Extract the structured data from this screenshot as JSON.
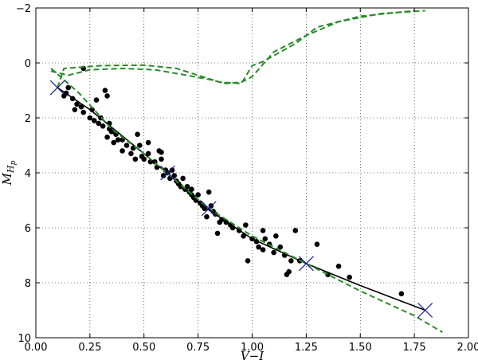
{
  "chart_data": {
    "type": "scatter",
    "title": "",
    "xlabel": "V−I",
    "ylabel": "M_Hp",
    "ylabel_main": "M",
    "ylabel_sub": "H",
    "ylabel_subsub": "p",
    "xlim": [
      0.0,
      2.0
    ],
    "ylim": [
      10,
      -2
    ],
    "y_inverted": true,
    "grid": true,
    "x_ticks": [
      0.0,
      0.25,
      0.5,
      0.75,
      1.0,
      1.25,
      1.5,
      1.75,
      2.0
    ],
    "x_tick_labels": [
      "0.00",
      "0.25",
      "0.50",
      "0.75",
      "1.00",
      "1.25",
      "1.50",
      "1.75",
      "2.00"
    ],
    "y_ticks": [
      -2,
      0,
      2,
      4,
      6,
      8,
      10
    ],
    "y_tick_labels": [
      "−2",
      "0",
      "2",
      "4",
      "6",
      "8",
      "10"
    ],
    "series": [
      {
        "kind": "scatter",
        "color": "#000000",
        "points": [
          [
            0.22,
            0.2
          ],
          [
            0.15,
            0.9
          ],
          [
            0.14,
            1.1
          ],
          [
            0.13,
            1.2
          ],
          [
            0.17,
            1.3
          ],
          [
            0.19,
            1.5
          ],
          [
            0.18,
            1.7
          ],
          [
            0.21,
            1.6
          ],
          [
            0.22,
            1.8
          ],
          [
            0.26,
            1.7
          ],
          [
            0.25,
            2.0
          ],
          [
            0.27,
            2.1
          ],
          [
            0.29,
            2.2
          ],
          [
            0.31,
            2.3
          ],
          [
            0.28,
            1.35
          ],
          [
            0.32,
            1.0
          ],
          [
            0.33,
            1.2
          ],
          [
            0.3,
            2.0
          ],
          [
            0.34,
            2.2
          ],
          [
            0.34,
            2.4
          ],
          [
            0.35,
            2.5
          ],
          [
            0.33,
            2.7
          ],
          [
            0.37,
            2.6
          ],
          [
            0.38,
            2.8
          ],
          [
            0.36,
            2.9
          ],
          [
            0.4,
            2.8
          ],
          [
            0.42,
            3.0
          ],
          [
            0.4,
            3.2
          ],
          [
            0.45,
            3.1
          ],
          [
            0.47,
            2.6
          ],
          [
            0.48,
            3.0
          ],
          [
            0.44,
            3.3
          ],
          [
            0.46,
            3.5
          ],
          [
            0.49,
            3.4
          ],
          [
            0.5,
            3.5
          ],
          [
            0.52,
            2.9
          ],
          [
            0.52,
            3.3
          ],
          [
            0.53,
            3.6
          ],
          [
            0.55,
            3.6
          ],
          [
            0.56,
            3.8
          ],
          [
            0.57,
            3.2
          ],
          [
            0.58,
            3.25
          ],
          [
            0.58,
            3.5
          ],
          [
            0.6,
            3.9
          ],
          [
            0.61,
            4.0
          ],
          [
            0.59,
            4.1
          ],
          [
            0.62,
            4.2
          ],
          [
            0.63,
            3.9
          ],
          [
            0.64,
            4.1
          ],
          [
            0.65,
            4.3
          ],
          [
            0.66,
            4.4
          ],
          [
            0.67,
            4.5
          ],
          [
            0.68,
            4.2
          ],
          [
            0.69,
            4.6
          ],
          [
            0.7,
            4.5
          ],
          [
            0.71,
            4.7
          ],
          [
            0.72,
            4.8
          ],
          [
            0.73,
            4.9
          ],
          [
            0.72,
            4.6
          ],
          [
            0.74,
            5.0
          ],
          [
            0.75,
            4.8
          ],
          [
            0.76,
            5.1
          ],
          [
            0.77,
            5.2
          ],
          [
            0.78,
            5.3
          ],
          [
            0.79,
            5.6
          ],
          [
            0.8,
            4.7
          ],
          [
            0.81,
            5.2
          ],
          [
            0.82,
            5.4
          ],
          [
            0.83,
            5.5
          ],
          [
            0.84,
            6.2
          ],
          [
            0.85,
            5.8
          ],
          [
            0.86,
            5.7
          ],
          [
            0.88,
            5.8
          ],
          [
            0.9,
            5.9
          ],
          [
            0.91,
            6.0
          ],
          [
            0.94,
            6.1
          ],
          [
            0.96,
            6.3
          ],
          [
            0.97,
            5.9
          ],
          [
            0.98,
            7.2
          ],
          [
            1.0,
            6.4
          ],
          [
            1.02,
            6.5
          ],
          [
            1.03,
            6.7
          ],
          [
            1.05,
            6.8
          ],
          [
            1.05,
            6.1
          ],
          [
            1.06,
            6.4
          ],
          [
            1.08,
            6.6
          ],
          [
            1.1,
            6.9
          ],
          [
            1.11,
            6.3
          ],
          [
            1.13,
            6.7
          ],
          [
            1.15,
            7.0
          ],
          [
            1.16,
            7.7
          ],
          [
            1.17,
            7.6
          ],
          [
            1.18,
            7.2
          ],
          [
            1.2,
            6.1
          ],
          [
            1.22,
            7.2
          ],
          [
            1.3,
            6.6
          ],
          [
            1.35,
            7.7
          ],
          [
            1.4,
            7.4
          ],
          [
            1.45,
            7.8
          ],
          [
            1.69,
            8.4
          ]
        ]
      },
      {
        "kind": "line",
        "color": "#000000",
        "points": [
          [
            0.1,
            0.9
          ],
          [
            0.25,
            1.7
          ],
          [
            0.5,
            3.3
          ],
          [
            0.62,
            4.1
          ],
          [
            0.79,
            5.3
          ],
          [
            1.0,
            6.4
          ],
          [
            1.25,
            7.3
          ],
          [
            1.5,
            8.1
          ],
          [
            1.8,
            9.0
          ]
        ]
      },
      {
        "kind": "dashed",
        "color": "#2a8a2a",
        "points": [
          [
            0.07,
            0.2
          ],
          [
            0.2,
            1.1
          ],
          [
            0.35,
            2.4
          ],
          [
            0.5,
            3.3
          ],
          [
            0.65,
            4.3
          ],
          [
            0.8,
            5.3
          ],
          [
            1.0,
            6.3
          ],
          [
            1.25,
            7.3
          ],
          [
            1.5,
            8.3
          ],
          [
            1.75,
            9.2
          ],
          [
            1.88,
            9.8
          ]
        ]
      },
      {
        "kind": "dashed",
        "color": "#2a8a2a",
        "points": [
          [
            0.07,
            0.3
          ],
          [
            0.15,
            0.45
          ],
          [
            0.25,
            0.25
          ],
          [
            0.4,
            0.2
          ],
          [
            0.55,
            0.25
          ],
          [
            0.7,
            0.45
          ],
          [
            0.8,
            0.6
          ],
          [
            0.88,
            0.75
          ],
          [
            0.95,
            0.7
          ],
          [
            1.0,
            0.5
          ],
          [
            1.1,
            -0.4
          ],
          [
            1.25,
            -1.0
          ],
          [
            1.4,
            -1.5
          ],
          [
            1.6,
            -1.8
          ],
          [
            1.8,
            -1.9
          ]
        ]
      },
      {
        "kind": "dashed",
        "color": "#2a8a2a",
        "points": [
          [
            0.1,
            0.9
          ],
          [
            0.13,
            0.2
          ],
          [
            0.3,
            0.1
          ],
          [
            0.5,
            0.08
          ],
          [
            0.65,
            0.2
          ],
          [
            0.75,
            0.45
          ],
          [
            0.85,
            0.7
          ],
          [
            0.95,
            0.75
          ],
          [
            1.0,
            0.1
          ],
          [
            1.05,
            -0.05
          ],
          [
            1.2,
            -0.7
          ],
          [
            1.3,
            -1.3
          ],
          [
            1.5,
            -1.7
          ],
          [
            1.75,
            -1.9
          ]
        ]
      },
      {
        "kind": "cross",
        "color": "#1a1a8c",
        "points": [
          [
            0.1,
            0.9
          ],
          [
            0.61,
            4.0
          ],
          [
            0.8,
            5.3
          ],
          [
            1.25,
            7.3
          ],
          [
            1.8,
            9.0
          ]
        ]
      }
    ]
  }
}
